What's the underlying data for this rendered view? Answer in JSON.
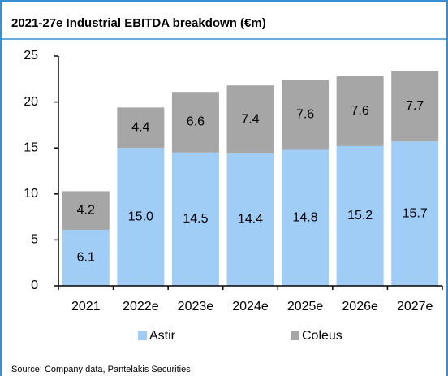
{
  "chart_data": {
    "type": "stacked_bar",
    "title": "2021-27e Industrial EBITDA breakdown (€m)",
    "categories": [
      "2021",
      "2022e",
      "2023e",
      "2024e",
      "2025e",
      "2026e",
      "2027e"
    ],
    "series": [
      {
        "name": "Astir",
        "color": "#9fcdf6",
        "values": [
          6.1,
          15.0,
          14.5,
          14.4,
          14.8,
          15.2,
          15.7
        ],
        "value_labels": [
          "6.1",
          "15.0",
          "14.5",
          "14.4",
          "14.8",
          "15.2",
          "15.7"
        ]
      },
      {
        "name": "Coleus",
        "color": "#a6a6a6",
        "values": [
          4.2,
          4.4,
          6.6,
          7.4,
          7.6,
          7.6,
          7.7
        ]
      }
    ],
    "ylim": [
      0,
      25
    ],
    "yticks": [
      0,
      5,
      10,
      15,
      20,
      25
    ],
    "source": "Source: Company data, Pantelakis Securities"
  }
}
